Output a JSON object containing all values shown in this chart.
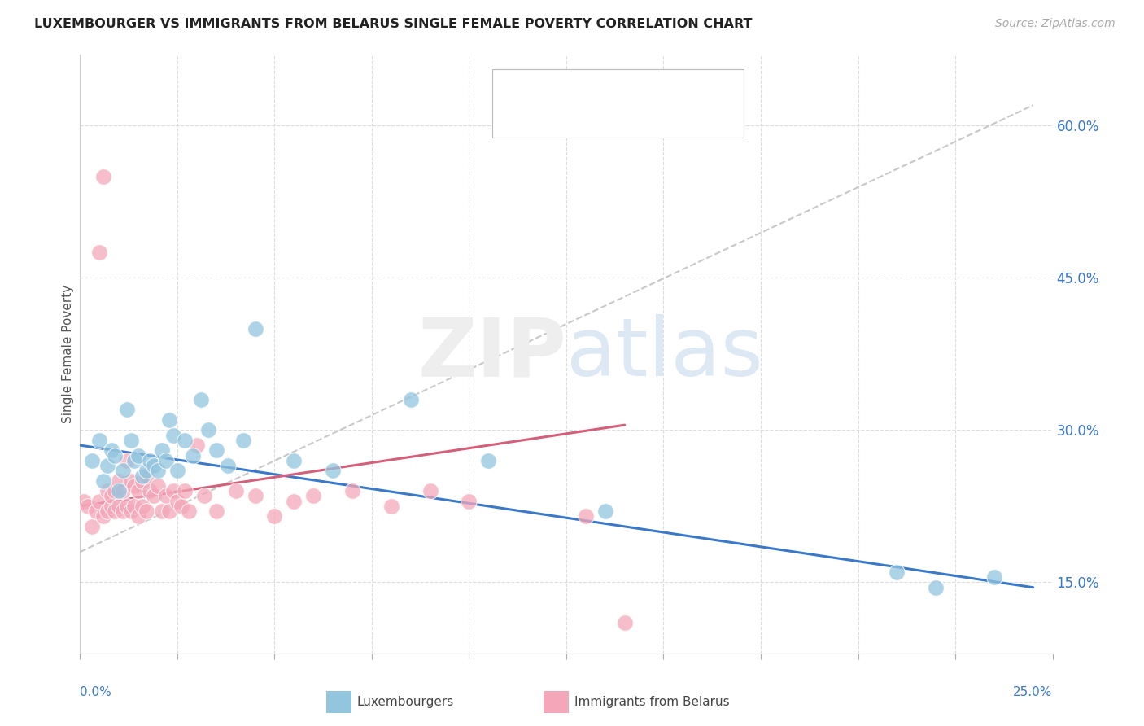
{
  "title": "LUXEMBOURGER VS IMMIGRANTS FROM BELARUS SINGLE FEMALE POVERTY CORRELATION CHART",
  "source": "Source: ZipAtlas.com",
  "ylabel": "Single Female Poverty",
  "right_yticks": [
    15.0,
    30.0,
    45.0,
    60.0
  ],
  "blue_color": "#92c5de",
  "pink_color": "#f4a7b9",
  "blue_line_color": "#3a78c9",
  "pink_line_color": "#d45f7a",
  "gray_dash_color": "#c8c8c8",
  "background_color": "#ffffff",
  "xlim": [
    0.0,
    25.0
  ],
  "ylim": [
    8.0,
    67.0
  ],
  "blue_scatter_x": [
    0.3,
    0.5,
    0.6,
    0.7,
    0.8,
    0.9,
    1.0,
    1.1,
    1.2,
    1.3,
    1.4,
    1.5,
    1.6,
    1.7,
    1.8,
    1.9,
    2.0,
    2.1,
    2.2,
    2.3,
    2.4,
    2.5,
    2.7,
    2.9,
    3.1,
    3.3,
    3.5,
    3.8,
    4.2,
    4.5,
    5.5,
    6.5,
    8.5,
    10.5,
    13.5,
    21.0,
    22.0,
    23.5
  ],
  "blue_scatter_y": [
    27.0,
    29.0,
    25.0,
    26.5,
    28.0,
    27.5,
    24.0,
    26.0,
    32.0,
    29.0,
    27.0,
    27.5,
    25.5,
    26.0,
    27.0,
    26.5,
    26.0,
    28.0,
    27.0,
    31.0,
    29.5,
    26.0,
    29.0,
    27.5,
    33.0,
    30.0,
    28.0,
    26.5,
    29.0,
    40.0,
    27.0,
    26.0,
    33.0,
    27.0,
    22.0,
    16.0,
    14.5,
    15.5
  ],
  "pink_scatter_x": [
    0.1,
    0.2,
    0.3,
    0.4,
    0.5,
    0.5,
    0.6,
    0.6,
    0.7,
    0.7,
    0.8,
    0.8,
    0.9,
    0.9,
    1.0,
    1.0,
    1.1,
    1.1,
    1.2,
    1.2,
    1.3,
    1.3,
    1.4,
    1.4,
    1.5,
    1.5,
    1.6,
    1.6,
    1.7,
    1.7,
    1.8,
    1.9,
    2.0,
    2.1,
    2.2,
    2.3,
    2.4,
    2.5,
    2.6,
    2.7,
    2.8,
    3.0,
    3.2,
    3.5,
    4.0,
    4.5,
    5.0,
    5.5,
    6.0,
    7.0,
    8.0,
    9.0,
    10.0,
    13.0,
    14.0
  ],
  "pink_scatter_y": [
    23.0,
    22.5,
    20.5,
    22.0,
    23.0,
    47.5,
    21.5,
    55.0,
    22.0,
    24.0,
    22.5,
    23.5,
    22.0,
    24.0,
    22.5,
    25.0,
    22.0,
    24.0,
    22.5,
    27.0,
    22.0,
    25.0,
    22.5,
    24.5,
    21.5,
    24.0,
    22.5,
    25.0,
    22.0,
    25.5,
    24.0,
    23.5,
    24.5,
    22.0,
    23.5,
    22.0,
    24.0,
    23.0,
    22.5,
    24.0,
    22.0,
    28.5,
    23.5,
    22.0,
    24.0,
    23.5,
    21.5,
    23.0,
    23.5,
    24.0,
    22.5,
    24.0,
    23.0,
    21.5,
    11.0
  ],
  "blue_trend_x": [
    0.0,
    24.5
  ],
  "blue_trend_y": [
    28.5,
    14.5
  ],
  "pink_trend_x": [
    0.0,
    14.0
  ],
  "pink_trend_y": [
    22.5,
    30.5
  ],
  "gray_trend_x": [
    0.0,
    24.5
  ],
  "gray_trend_y": [
    18.0,
    62.0
  ]
}
